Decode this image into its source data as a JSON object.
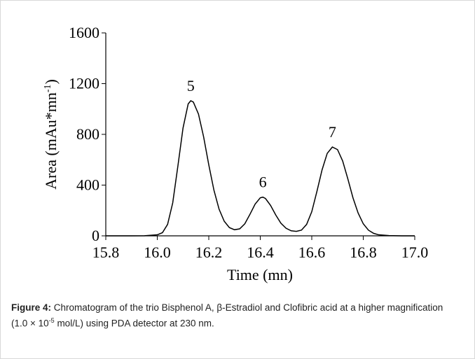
{
  "chart_data": {
    "type": "line",
    "ylabel": "Area (mAu*mn",
    "ylabel_superscript": "-1",
    "ylabel_end": ")",
    "xlabel": "Time (mn)",
    "x": [
      15.8,
      15.9,
      15.95,
      16.0,
      16.02,
      16.04,
      16.06,
      16.08,
      16.1,
      16.12,
      16.13,
      16.14,
      16.16,
      16.18,
      16.2,
      16.22,
      16.24,
      16.26,
      16.28,
      16.3,
      16.32,
      16.34,
      16.36,
      16.38,
      16.4,
      16.41,
      16.42,
      16.44,
      16.46,
      16.48,
      16.5,
      16.52,
      16.54,
      16.56,
      16.58,
      16.6,
      16.62,
      16.64,
      16.66,
      16.68,
      16.7,
      16.72,
      16.74,
      16.76,
      16.78,
      16.8,
      16.82,
      16.84,
      16.86,
      16.9,
      16.95,
      17.0
    ],
    "series": [
      {
        "color": "#000000",
        "values": [
          0,
          0,
          1,
          8,
          25,
          90,
          260,
          550,
          850,
          1040,
          1065,
          1055,
          960,
          780,
          560,
          360,
          210,
          115,
          65,
          48,
          55,
          95,
          170,
          250,
          300,
          305,
          295,
          240,
          165,
          100,
          60,
          40,
          35,
          45,
          90,
          190,
          350,
          520,
          650,
          700,
          680,
          590,
          450,
          300,
          180,
          95,
          45,
          20,
          8,
          2,
          0,
          0
        ]
      }
    ],
    "annotations": [
      {
        "text": "5",
        "x": 16.13,
        "y": 1065
      },
      {
        "text": "6",
        "x": 16.41,
        "y": 305
      },
      {
        "text": "7",
        "x": 16.68,
        "y": 700
      }
    ],
    "xlim": [
      15.8,
      17.0
    ],
    "xticks": [
      15.8,
      {
        "value": 16,
        "label": "16.0"
      },
      16.2,
      16.4,
      16.6,
      16.8,
      {
        "value": 17,
        "label": "17.0"
      }
    ],
    "ylim": [
      0,
      1600
    ],
    "yticks": [
      0,
      400,
      800,
      1200,
      1600
    ]
  },
  "caption": {
    "label": "Figure 4:",
    "text": " Chromatogram of the trio Bisphenol A, β-Estradiol and Clofibric acid at a higher magnification (1.0 × 10",
    "superscript": "-5",
    "text_end": " mol/L) using PDA detector at 230 nm."
  }
}
